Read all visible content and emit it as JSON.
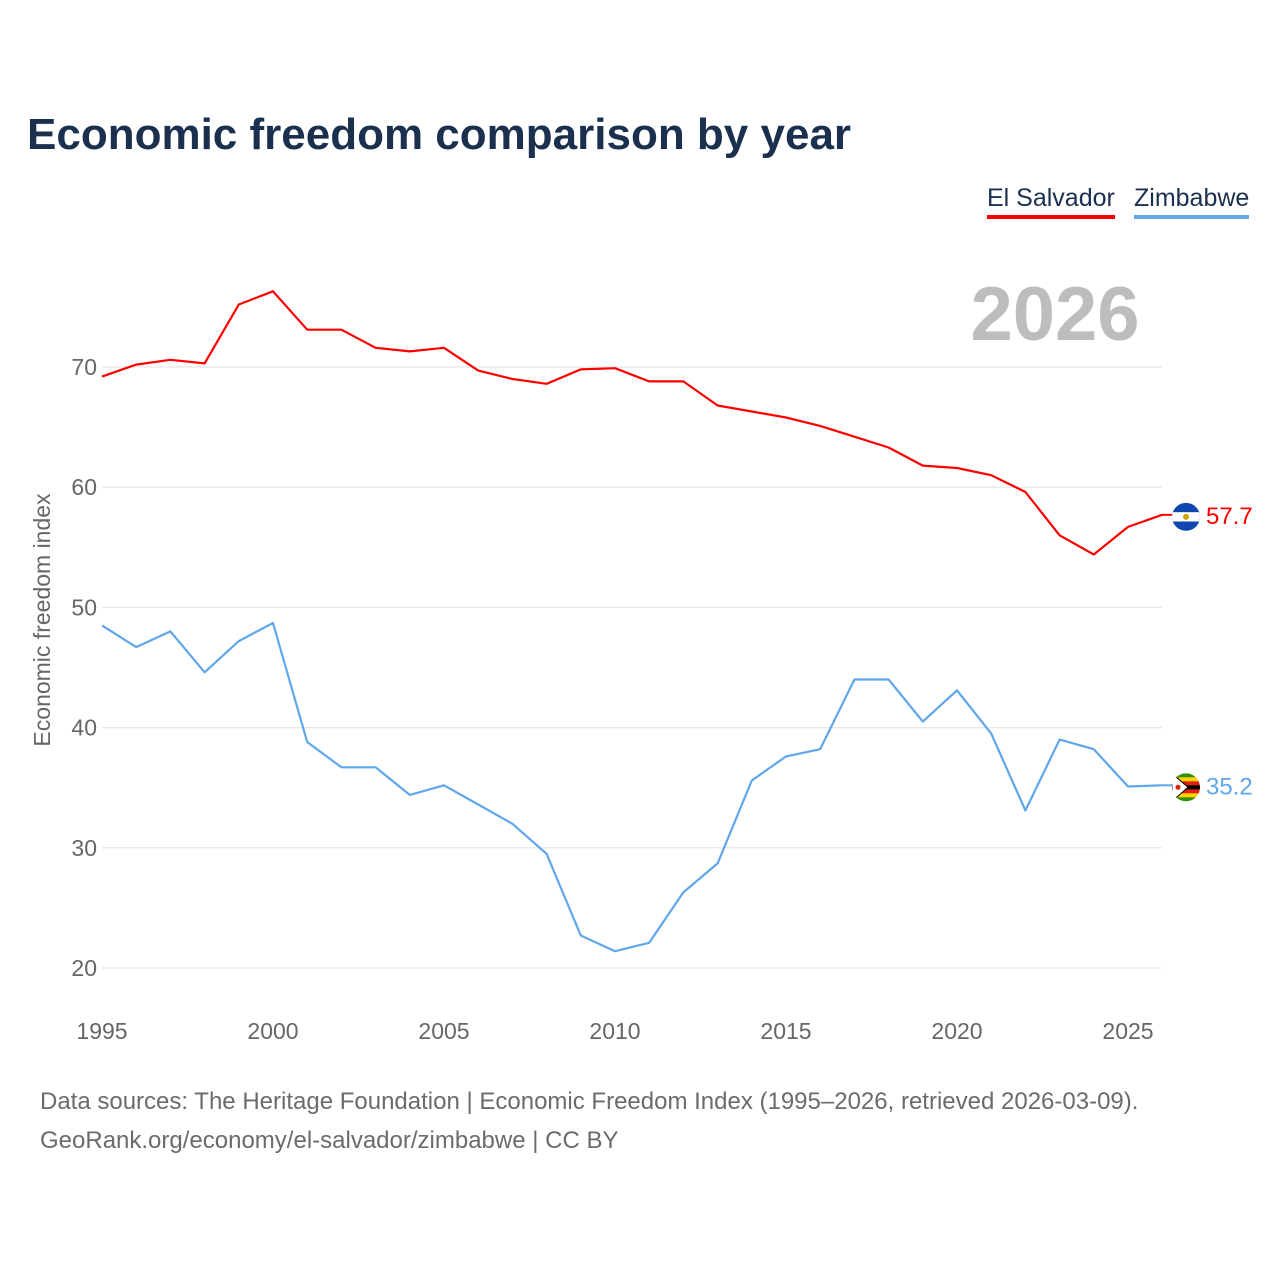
{
  "title": "Economic freedom comparison by year",
  "legend": [
    {
      "label": "El Salvador",
      "color": "#ff0000"
    },
    {
      "label": "Zimbabwe",
      "color": "#5fa6ea"
    }
  ],
  "footer": {
    "line1": "Data sources: The Heritage Foundation | Economic Freedom Index (1995–2026, retrieved 2026-03-09).",
    "line2": "GeoRank.org/economy/el-salvador/zimbabwe | CC BY"
  },
  "chart_data": {
    "type": "line",
    "title": "Economic freedom comparison by year",
    "xlabel": "",
    "ylabel": "Economic freedom index",
    "year_watermark": "2026",
    "xlim": [
      1995,
      2026
    ],
    "ylim": [
      20,
      77
    ],
    "xticks": [
      "1995",
      "2000",
      "2005",
      "2010",
      "2015",
      "2020",
      "2025"
    ],
    "yticks": [
      "20",
      "30",
      "40",
      "50",
      "60",
      "70"
    ],
    "grid": true,
    "legend_position": "top-right",
    "x": [
      1995,
      1996,
      1997,
      1998,
      1999,
      2000,
      2001,
      2002,
      2003,
      2004,
      2005,
      2006,
      2007,
      2008,
      2009,
      2010,
      2011,
      2012,
      2013,
      2014,
      2015,
      2016,
      2017,
      2018,
      2019,
      2020,
      2021,
      2022,
      2023,
      2024,
      2025,
      2026
    ],
    "series": [
      {
        "name": "El Salvador",
        "color": "#ff0000",
        "end_label": "57.7",
        "flag": "el-salvador-flag-icon",
        "values": [
          69.2,
          70.2,
          70.6,
          70.3,
          75.2,
          76.3,
          73.1,
          73.1,
          71.6,
          71.3,
          71.6,
          69.7,
          69.0,
          68.6,
          69.8,
          69.9,
          68.8,
          68.8,
          66.8,
          66.3,
          65.8,
          65.1,
          64.2,
          63.3,
          61.8,
          61.6,
          61.0,
          59.6,
          56.0,
          54.4,
          56.7,
          57.7
        ]
      },
      {
        "name": "Zimbabwe",
        "color": "#5fa6ea",
        "end_label": "35.2",
        "flag": "zimbabwe-flag-icon",
        "values": [
          48.5,
          46.7,
          48.0,
          44.6,
          47.2,
          48.7,
          38.8,
          36.7,
          36.7,
          34.4,
          35.2,
          33.6,
          32.0,
          29.5,
          22.7,
          21.4,
          22.1,
          26.3,
          28.7,
          35.6,
          37.6,
          38.2,
          44.0,
          44.0,
          40.5,
          43.1,
          39.5,
          33.1,
          39.0,
          38.2,
          35.1,
          35.2
        ]
      }
    ]
  }
}
